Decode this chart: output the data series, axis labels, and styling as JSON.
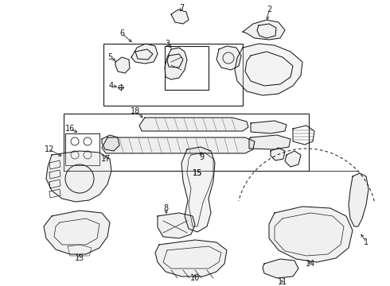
{
  "background_color": "#ffffff",
  "line_color": "#1a1a1a",
  "figsize": [
    4.9,
    3.6
  ],
  "dpi": 100,
  "label_fontsize": 7.0,
  "lw": 0.75
}
